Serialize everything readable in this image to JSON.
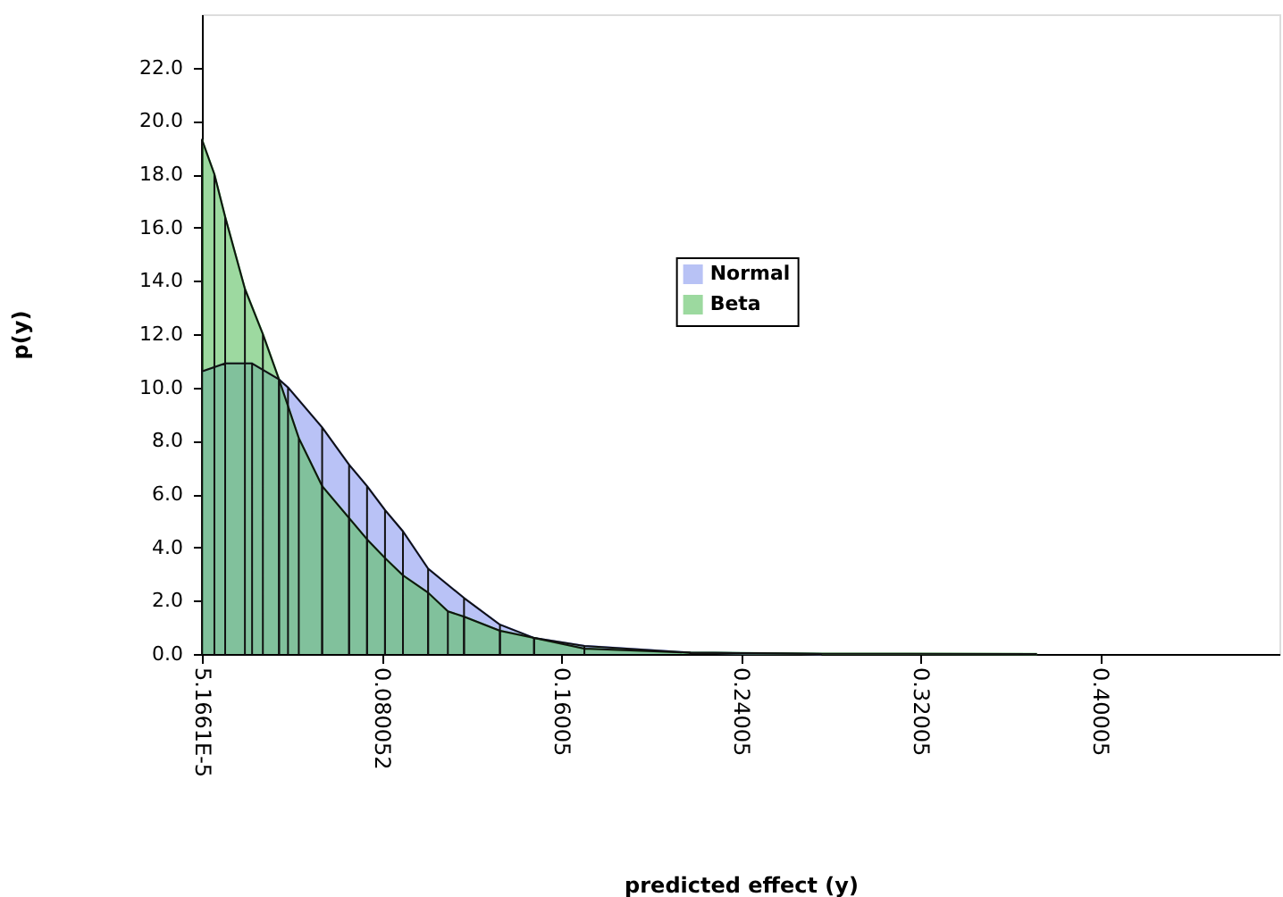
{
  "chart_data": {
    "type": "area",
    "xlabel": "predicted effect (y)",
    "ylabel": "p(y)",
    "xlim": [
      5.1661e-05,
      0.48
    ],
    "ylim": [
      0,
      24
    ],
    "xticks": [
      {
        "value": 5.1661e-05,
        "label": "5.1661E-5"
      },
      {
        "value": 0.080052,
        "label": "0.080052"
      },
      0.16005,
      0.24005,
      0.32005,
      0.40005
    ],
    "yticks": [
      {
        "value": 0,
        "label": "0.0"
      },
      {
        "value": 2,
        "label": "2.0"
      },
      {
        "value": 4,
        "label": "4.0"
      },
      {
        "value": 6,
        "label": "6.0"
      },
      {
        "value": 8,
        "label": "8.0"
      },
      {
        "value": 10,
        "label": "10.0"
      },
      {
        "value": 12,
        "label": "12.0"
      },
      {
        "value": 14,
        "label": "14.0"
      },
      {
        "value": 16,
        "label": "16.0"
      },
      {
        "value": 18,
        "label": "18.0"
      },
      {
        "value": 20,
        "label": "20.0"
      },
      {
        "value": 22,
        "label": "22.0"
      }
    ],
    "grid": false,
    "legend": "top",
    "series": [
      {
        "name": "Normal",
        "color": "#8a9af0",
        "x": [
          5.1661e-05,
          0.0104,
          0.0224,
          0.0344,
          0.0384,
          0.0536,
          0.0656,
          0.0736,
          0.0816,
          0.0896,
          0.1008,
          0.1168,
          0.1328,
          0.148,
          0.1704,
          0.2176,
          0.276
        ],
        "values": [
          10.6,
          10.9,
          10.9,
          10.3,
          10.0,
          8.5,
          7.1,
          6.3,
          5.4,
          4.6,
          3.2,
          2.1,
          1.1,
          0.6,
          0.3,
          0.05,
          0.0
        ]
      },
      {
        "name": "Beta",
        "color": "#5cc060",
        "x": [
          5.1661e-05,
          0.0056,
          0.0104,
          0.0192,
          0.0272,
          0.0344,
          0.0432,
          0.0536,
          0.0656,
          0.0736,
          0.0816,
          0.0896,
          0.1008,
          0.1096,
          0.1168,
          0.1328,
          0.148,
          0.1704,
          0.2176,
          0.276,
          0.372
        ],
        "values": [
          19.3,
          18.0,
          16.4,
          13.7,
          12.0,
          10.3,
          8.1,
          6.3,
          5.1,
          4.3,
          3.6,
          2.95,
          2.3,
          1.6,
          1.4,
          0.87,
          0.6,
          0.2,
          0.05,
          0.01,
          0.0
        ]
      }
    ]
  }
}
